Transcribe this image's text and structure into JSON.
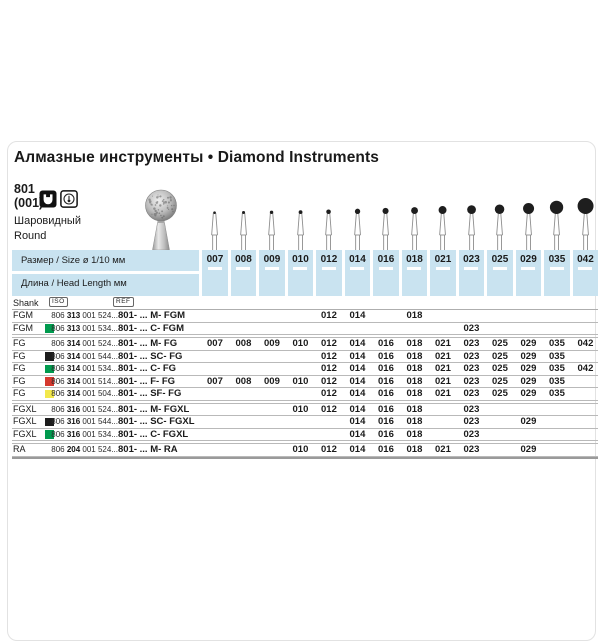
{
  "header": {
    "title": "Алмазные инструменты • Diamond Instruments"
  },
  "product": {
    "code": "801",
    "code_alt": "(001)",
    "shape_ru": "Шаровидный",
    "shape_en": "Round",
    "icons": [
      "contra-angle-handpiece-icon",
      "turbine-speed-icon"
    ]
  },
  "size_header": {
    "size_label": "Размер / Size ø 1/10 мм",
    "length_label": "Длина / Head Length мм",
    "sizes": [
      "007",
      "008",
      "009",
      "010",
      "012",
      "014",
      "016",
      "018",
      "021",
      "023",
      "025",
      "029",
      "035",
      "042"
    ]
  },
  "table": {
    "shank_header": "Shank",
    "iso_header": "ISO",
    "ref_header": "REF",
    "rows": [
      {
        "shank": "FGM",
        "grit_color": null,
        "iso": {
          "p1": "806",
          "p2": "313",
          "p3": "001 524..."
        },
        "ref": "801- ... M-  FGM",
        "sizes": [
          "012",
          "014",
          "018"
        ],
        "group_start": false
      },
      {
        "shank": "FGM",
        "grit_color": "#009a4e",
        "iso": {
          "p1": "806",
          "p2": "313",
          "p3": "001 534..."
        },
        "ref": "801- ... C-  FGM",
        "sizes": [
          "023"
        ],
        "group_start": false
      },
      {
        "shank": "FG",
        "grit_color": null,
        "iso": {
          "p1": "806",
          "p2": "314",
          "p3": "001 524..."
        },
        "ref": "801- ... M-  FG",
        "sizes": [
          "007",
          "008",
          "009",
          "010",
          "012",
          "014",
          "016",
          "018",
          "021",
          "023",
          "025",
          "029",
          "035",
          "042"
        ],
        "group_start": true
      },
      {
        "shank": "FG",
        "grit_color": "#1c1c1c",
        "iso": {
          "p1": "806",
          "p2": "314",
          "p3": "001 544..."
        },
        "ref": "801- ... SC- FG",
        "sizes": [
          "012",
          "014",
          "016",
          "018",
          "021",
          "023",
          "025",
          "029",
          "035"
        ],
        "group_start": false
      },
      {
        "shank": "FG",
        "grit_color": "#009a4e",
        "iso": {
          "p1": "806",
          "p2": "314",
          "p3": "001 534..."
        },
        "ref": "801- ... C-  FG",
        "sizes": [
          "012",
          "014",
          "016",
          "018",
          "021",
          "023",
          "025",
          "029",
          "035",
          "042"
        ],
        "group_start": false
      },
      {
        "shank": "FG",
        "grit_color": "#d5382e",
        "iso": {
          "p1": "806",
          "p2": "314",
          "p3": "001 514..."
        },
        "ref": "801- ... F-  FG",
        "sizes": [
          "007",
          "008",
          "009",
          "010",
          "012",
          "014",
          "016",
          "018",
          "021",
          "023",
          "025",
          "029",
          "035"
        ],
        "group_start": false
      },
      {
        "shank": "FG",
        "grit_color": "#f2e84c",
        "iso": {
          "p1": "806",
          "p2": "314",
          "p3": "001 504..."
        },
        "ref": "801- ... SF- FG",
        "sizes": [
          "012",
          "014",
          "016",
          "018",
          "021",
          "023",
          "025",
          "029",
          "035"
        ],
        "group_start": false
      },
      {
        "shank": "FGXL",
        "grit_color": null,
        "iso": {
          "p1": "806",
          "p2": "316",
          "p3": "001 524..."
        },
        "ref": "801- ... M-  FGXL",
        "sizes": [
          "010",
          "012",
          "014",
          "016",
          "018",
          "023"
        ],
        "group_start": true
      },
      {
        "shank": "FGXL",
        "grit_color": "#1c1c1c",
        "iso": {
          "p1": "806",
          "p2": "316",
          "p3": "001 544..."
        },
        "ref": "801- ... SC- FGXL",
        "sizes": [
          "014",
          "016",
          "018",
          "023",
          "029"
        ],
        "group_start": false
      },
      {
        "shank": "FGXL",
        "grit_color": "#009a4e",
        "iso": {
          "p1": "806",
          "p2": "316",
          "p3": "001 534..."
        },
        "ref": "801- ... C-  FGXL",
        "sizes": [
          "014",
          "016",
          "018",
          "023"
        ],
        "group_start": false
      },
      {
        "shank": "RA",
        "grit_color": null,
        "iso": {
          "p1": "806",
          "p2": "204",
          "p3": "001 524..."
        },
        "ref": "801- ... M-  RA",
        "sizes": [
          "010",
          "012",
          "014",
          "016",
          "018",
          "021",
          "023",
          "029"
        ],
        "group_start": true
      }
    ]
  },
  "colors": {
    "band_blue": "#c9e3f0",
    "grit_coarse_green": "#009a4e",
    "grit_supercoarse_black": "#1c1c1c",
    "grit_fine_red": "#d5382e",
    "grit_superfine_yellow": "#f2e84c"
  }
}
